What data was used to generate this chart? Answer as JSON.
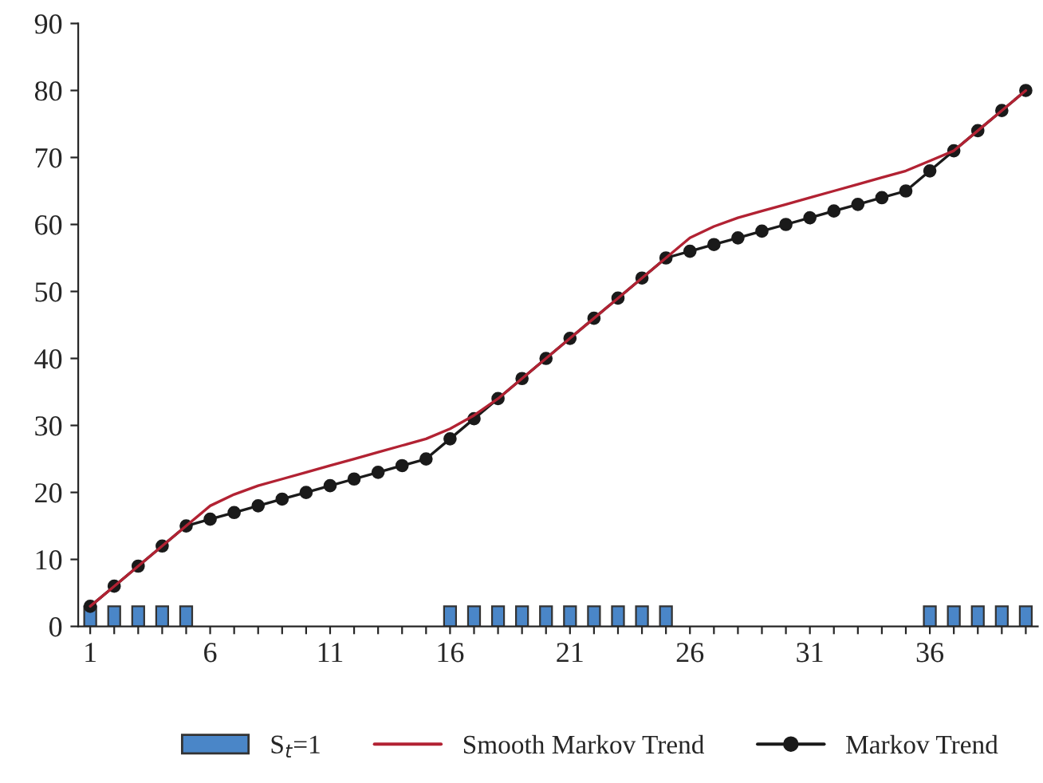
{
  "chart_data": {
    "type": "line",
    "categories": [
      "1",
      null,
      null,
      null,
      null,
      "6",
      null,
      null,
      null,
      null,
      "11",
      null,
      null,
      null,
      null,
      "16",
      null,
      null,
      null,
      null,
      "21",
      null,
      null,
      null,
      null,
      "26",
      null,
      null,
      null,
      null,
      "31",
      null,
      null,
      null,
      null,
      "36",
      null,
      null,
      null,
      null
    ],
    "series": [
      {
        "name": "S$_{t}$=1",
        "type": "bar",
        "color": "#4a86c8",
        "values": [
          3,
          3,
          3,
          3,
          3,
          null,
          null,
          null,
          null,
          null,
          null,
          null,
          null,
          null,
          null,
          3,
          3,
          3,
          3,
          3,
          3,
          3,
          3,
          3,
          3,
          null,
          null,
          null,
          null,
          null,
          null,
          null,
          null,
          null,
          null,
          3,
          3,
          3,
          3,
          3
        ]
      },
      {
        "name": "Smooth Markov Trend",
        "color": "#b22233",
        "marker": "none",
        "values": [
          3,
          6,
          9,
          12,
          15,
          18,
          19.7,
          21,
          22,
          23,
          24,
          25,
          26,
          27,
          28,
          29.5,
          31.5,
          34,
          37,
          40,
          43,
          46,
          49,
          52,
          55,
          58,
          59.7,
          61,
          62,
          63,
          64,
          65,
          66,
          67,
          68,
          69.5,
          71,
          74,
          77,
          80
        ]
      },
      {
        "name": "Markov Trend",
        "color": "#1a1a1a",
        "marker": "circle",
        "values": [
          3,
          6,
          9,
          12,
          15,
          16,
          17,
          18,
          19,
          20,
          21,
          22,
          23,
          24,
          25,
          28,
          31,
          34,
          37,
          40,
          43,
          46,
          49,
          52,
          55,
          56,
          57,
          58,
          59,
          60,
          61,
          62,
          63,
          64,
          65,
          68,
          71,
          74,
          77,
          80
        ]
      }
    ],
    "ylim": [
      0,
      90
    ],
    "yticks": [
      0,
      10,
      20,
      30,
      40,
      50,
      60,
      70,
      80,
      90
    ],
    "grid": false,
    "legend": "bottom"
  }
}
